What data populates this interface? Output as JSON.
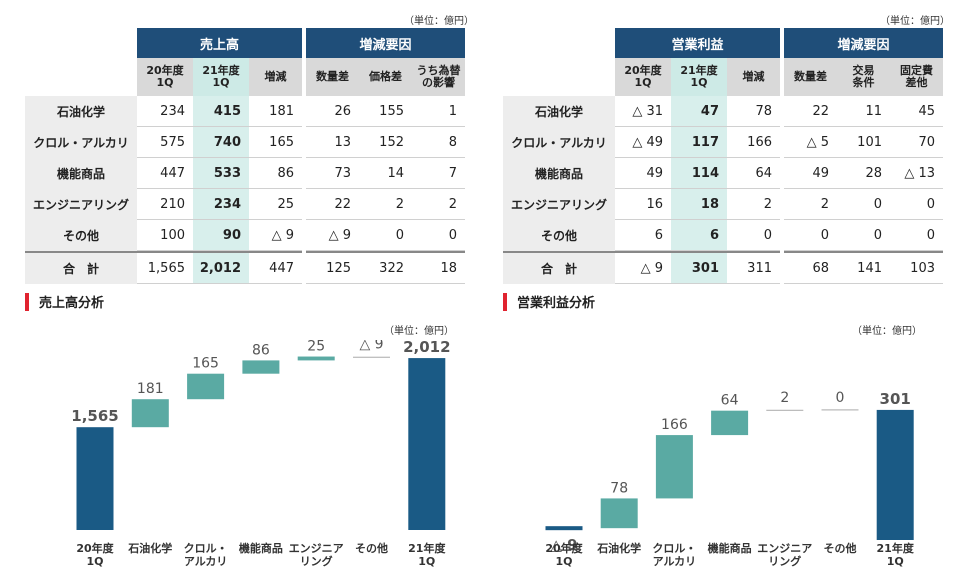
{
  "left_table": {
    "unit": "（単位：億円）",
    "group1": "売上高",
    "group2": "増減要因",
    "cols": [
      "20年度\n1Q",
      "21年度\n1Q",
      "増減",
      "数量差",
      "価格差",
      "うち為替\nの影響"
    ],
    "rows": [
      {
        "label": "石油化学",
        "cells": [
          "234",
          "415",
          "181",
          "26",
          "155",
          "1"
        ]
      },
      {
        "label": "クロル・アルカリ",
        "cells": [
          "575",
          "740",
          "165",
          "13",
          "152",
          "8"
        ]
      },
      {
        "label": "機能商品",
        "cells": [
          "447",
          "533",
          "86",
          "73",
          "14",
          "7"
        ]
      },
      {
        "label": "エンジニアリング",
        "cells": [
          "210",
          "234",
          "25",
          "22",
          "2",
          "2"
        ]
      },
      {
        "label": "その他",
        "cells": [
          "100",
          "90",
          "△ 9",
          "△ 9",
          "0",
          "0"
        ]
      },
      {
        "label": "合　計",
        "cells": [
          "1,565",
          "2,012",
          "447",
          "125",
          "322",
          "18"
        ]
      }
    ]
  },
  "right_table": {
    "unit": "（単位：億円）",
    "group1": "営業利益",
    "group2": "増減要因",
    "cols": [
      "20年度\n1Q",
      "21年度\n1Q",
      "増減",
      "数量差",
      "交易\n条件",
      "固定費\n差他"
    ],
    "rows": [
      {
        "label": "石油化学",
        "cells": [
          "△ 31",
          "47",
          "78",
          "22",
          "11",
          "45"
        ]
      },
      {
        "label": "クロル・アルカリ",
        "cells": [
          "△ 49",
          "117",
          "166",
          "△ 5",
          "101",
          "70"
        ]
      },
      {
        "label": "機能商品",
        "cells": [
          "49",
          "114",
          "64",
          "49",
          "28",
          "△ 13"
        ]
      },
      {
        "label": "エンジニアリング",
        "cells": [
          "16",
          "18",
          "2",
          "2",
          "0",
          "0"
        ]
      },
      {
        "label": "その他",
        "cells": [
          "6",
          "6",
          "0",
          "0",
          "0",
          "0"
        ]
      },
      {
        "label": "合　計",
        "cells": [
          "△ 9",
          "301",
          "311",
          "68",
          "141",
          "103"
        ]
      }
    ]
  },
  "left_chart": {
    "title": "売上高分析",
    "unit": "（単位：億円）"
  },
  "right_chart": {
    "title": "営業利益分析",
    "unit": "（単位：億円）"
  },
  "colors": {
    "header": "#1f4e79",
    "total_bar": "#1a5a85",
    "delta_bar": "#5aaaa3",
    "highlight": "#d8efec",
    "accent": "#e0232f"
  },
  "chart_data": [
    {
      "type": "bar",
      "subtype": "waterfall",
      "title": "売上高分析",
      "categories": [
        "20年度\n1Q",
        "石油化学",
        "クロル・\nアルカリ",
        "機能商品",
        "エンジニア\nリング",
        "その他",
        "21年度\n1Q"
      ],
      "values": [
        1565,
        181,
        165,
        86,
        25,
        -9,
        2012
      ],
      "labels": [
        "1,565",
        "181",
        "165",
        "86",
        "25",
        "△ 9",
        "2,012"
      ],
      "kinds": [
        "total",
        "delta",
        "delta",
        "delta",
        "delta",
        "delta",
        "total"
      ]
    },
    {
      "type": "bar",
      "subtype": "waterfall",
      "title": "営業利益分析",
      "categories": [
        "20年度\n1Q",
        "石油化学",
        "クロル・\nアルカリ",
        "機能商品",
        "エンジニア\nリング",
        "その他",
        "21年度\n1Q"
      ],
      "values": [
        -9,
        78,
        166,
        64,
        2,
        0,
        301
      ],
      "labels": [
        "△ 9",
        "78",
        "166",
        "64",
        "2",
        "0",
        "301"
      ],
      "kinds": [
        "total",
        "delta",
        "delta",
        "delta",
        "delta",
        "delta",
        "total"
      ]
    }
  ]
}
